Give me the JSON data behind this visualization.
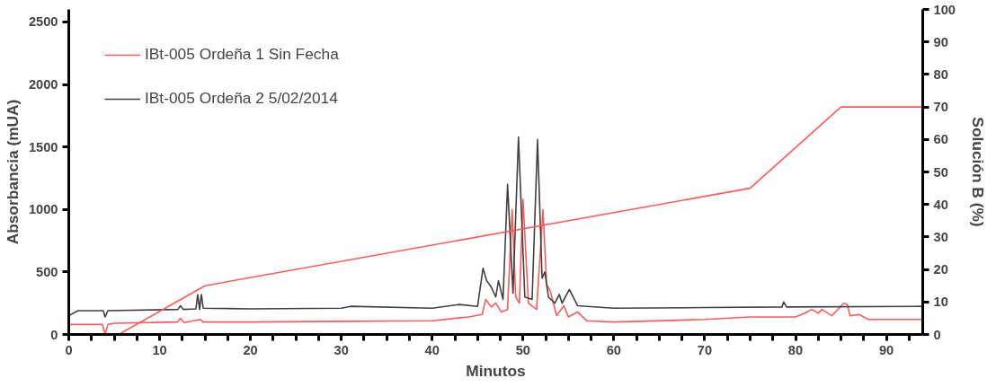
{
  "chart_data": {
    "type": "line",
    "xlabel": "Minutos",
    "ylabel": "Absorbancia (mUA)",
    "y2label": "Solución B (%)",
    "xlim": [
      0,
      94
    ],
    "ylim": [
      0,
      2600
    ],
    "y2lim": [
      0,
      100
    ],
    "xticks": [
      0,
      {
        "value": 2.5,
        "label": null
      },
      {
        "value": 5,
        "label": null
      },
      {
        "value": 7.5,
        "label": null
      },
      10,
      {
        "value": 12.5,
        "label": null
      },
      {
        "value": 15,
        "label": null
      },
      {
        "value": 17.5,
        "label": null
      },
      20,
      {
        "value": 22.5,
        "label": null
      },
      {
        "value": 25,
        "label": null
      },
      {
        "value": 27.5,
        "label": null
      },
      30,
      {
        "value": 32.5,
        "label": null
      },
      {
        "value": 35,
        "label": null
      },
      {
        "value": 37.5,
        "label": null
      },
      40,
      {
        "value": 42.5,
        "label": null
      },
      {
        "value": 45,
        "label": null
      },
      {
        "value": 47.5,
        "label": null
      },
      50,
      {
        "value": 52.5,
        "label": null
      },
      {
        "value": 55,
        "label": null
      },
      {
        "value": 57.5,
        "label": null
      },
      60,
      {
        "value": 62.5,
        "label": null
      },
      {
        "value": 65,
        "label": null
      },
      {
        "value": 67.5,
        "label": null
      },
      70,
      {
        "value": 72.5,
        "label": null
      },
      {
        "value": 75,
        "label": null
      },
      {
        "value": 77.5,
        "label": null
      },
      80,
      {
        "value": 82.5,
        "label": null
      },
      {
        "value": 85,
        "label": null
      },
      {
        "value": 87.5,
        "label": null
      },
      90,
      {
        "value": 92.5,
        "label": null
      }
    ],
    "yticks": [
      0,
      500,
      1000,
      1500,
      2000,
      2500
    ],
    "y2ticks": [
      0,
      10,
      20,
      30,
      40,
      50,
      60,
      70,
      80,
      90,
      100
    ],
    "grid": false,
    "legend": "top left",
    "line_style": "solid",
    "marker": "none",
    "series": [
      {
        "name": "IBt-005 Ordeña 1 Sin Fecha",
        "color": "#ff5a5a",
        "x": [
          0,
          3.7,
          4,
          4.3,
          5,
          12,
          12.3,
          12.7,
          14.5,
          14.8,
          20,
          30,
          40,
          44,
          45.5,
          45.9,
          46.5,
          47,
          47.6,
          48.3,
          48.8,
          49.2,
          49.6,
          50,
          50.6,
          51.5,
          52.2,
          52.6,
          53,
          53.7,
          54.5,
          55,
          56,
          57,
          60,
          70,
          75,
          80,
          81,
          81.8,
          82.5,
          82.9,
          84,
          85.3,
          85.7,
          86,
          87,
          88,
          94
        ],
        "values": [
          80,
          80,
          0,
          80,
          90,
          100,
          130,
          95,
          120,
          100,
          100,
          105,
          110,
          140,
          160,
          280,
          220,
          250,
          180,
          200,
          1000,
          300,
          250,
          1080,
          250,
          200,
          1000,
          400,
          350,
          150,
          230,
          140,
          180,
          110,
          100,
          120,
          140,
          140,
          170,
          200,
          170,
          200,
          150,
          250,
          240,
          150,
          160,
          120,
          120
        ]
      },
      {
        "name": "IBt-005 Ordeña 2 5/02/2014",
        "color": "#404040",
        "x": [
          0,
          1,
          3.8,
          4,
          4.3,
          12,
          12.3,
          12.6,
          14,
          14.2,
          14.4,
          14.6,
          14.8,
          20,
          30,
          31,
          40,
          43,
          45,
          45.6,
          46,
          46.5,
          47,
          47.3,
          47.8,
          48.3,
          48.9,
          49.5,
          50.2,
          51,
          51.6,
          52.1,
          52.4,
          52.8,
          53.5,
          54,
          54.3,
          55.1,
          56,
          60,
          70,
          78.5,
          78.7,
          79,
          94
        ],
        "values": [
          150,
          190,
          190,
          140,
          190,
          200,
          230,
          200,
          205,
          320,
          200,
          320,
          210,
          205,
          210,
          225,
          210,
          240,
          225,
          530,
          430,
          380,
          300,
          430,
          280,
          1200,
          330,
          1580,
          300,
          280,
          1560,
          450,
          500,
          300,
          250,
          320,
          250,
          360,
          230,
          210,
          215,
          220,
          260,
          220,
          225
        ]
      },
      {
        "color": "#ff5a5a",
        "axis": "y2",
        "x": [
          0,
          5.5,
          15,
          75,
          85,
          94,
          94
        ],
        "values": [
          0,
          0,
          15,
          45,
          70,
          70,
          100
        ]
      }
    ]
  }
}
